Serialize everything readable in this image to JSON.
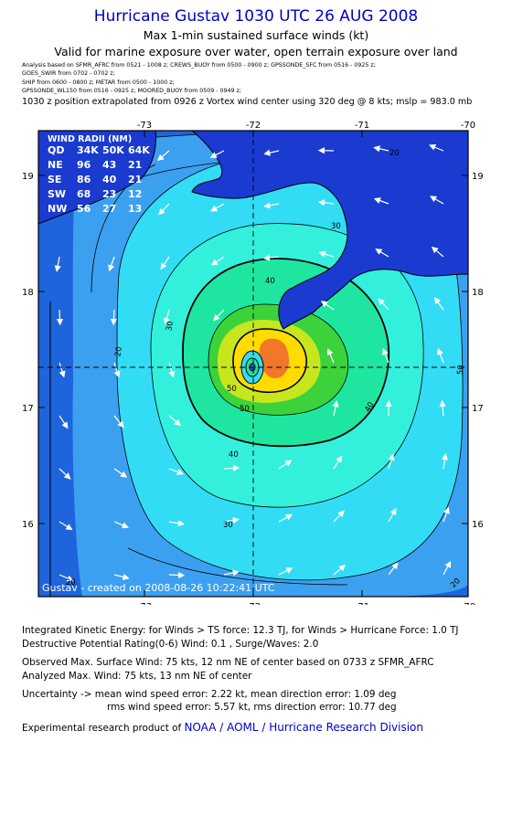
{
  "header": {
    "title": "Hurricane Gustav 1030 UTC 26 AUG 2008",
    "subtitle1": "Max 1-min sustained surface winds (kt)",
    "subtitle2": "Valid for marine exposure over water, open terrain exposure over land",
    "analysis_lines": [
      "Analysis based on  SFMR_AFRC  from 0521 - 1008 z;  CREWS_BUOY from 0500 - 0900 z;  GPSSONDE_SFC from 0516 - 0925 z;",
      "GOES_SWIR from 0702 - 0702 z;",
      "SHIP from 0600 - 0800 z;   METAR from 0500 - 1000 z;",
      "GPSSONDE_WL150 from 0516 - 0925 z;   MOORED_BUOY from 0509 - 0949 z;"
    ],
    "extrapolation": "1030 z position extrapolated from 0926 z Vortex wind center using 320 deg @ 8 kts; mslp = 983.0 mb"
  },
  "map": {
    "lon_ticks": [
      "-73",
      "-72",
      "-71",
      "-70"
    ],
    "lat_ticks": [
      "19",
      "18",
      "17",
      "16"
    ],
    "wind_radii": {
      "title": "WIND RADII (NM)",
      "header": [
        "QD",
        "34K",
        "50K",
        "64K"
      ],
      "rows": [
        [
          "NE",
          "96",
          "43",
          "21"
        ],
        [
          "SE",
          "86",
          "40",
          "21"
        ],
        [
          "SW",
          "68",
          "23",
          "12"
        ],
        [
          "NW",
          "56",
          "27",
          "13"
        ]
      ]
    },
    "contour_labels": [
      "20",
      "30",
      "30",
      "20",
      "40",
      "50",
      "40",
      "30",
      "50",
      "40",
      "50",
      "20",
      "20"
    ],
    "created": "Gustav - created on 2008-08-26 10:22:41 UTC",
    "colors": {
      "outer": "#1e64dc",
      "c20": "#3ca0f0",
      "c30": "#33dcf5",
      "c40": "#33f0dc",
      "c50": "#1ee6a0",
      "c60": "#3cd23c",
      "c64": "#c8e61e",
      "c70": "#ffdc00",
      "c75": "#f07828",
      "land": "#1a3ad0"
    }
  },
  "info": {
    "ike": "Integrated Kinetic Energy:  for Winds > TS force: 12.3 TJ,  for Winds > Hurricane Force: 1.0 TJ",
    "dpr": "Destructive Potential Rating(0-6)   Wind: 0.1 , Surge/Waves: 2.0",
    "obs_max": "Observed Max. Surface Wind: 75 kts, 12 nm NE of center based on 0733 z SFMR_AFRC",
    "ana_max": "Analyzed Max. Wind: 75 kts, 13 nm NE of center",
    "unc1": "Uncertainty -> mean wind speed error: 2.22 kt,   mean direction error: 1.09 deg",
    "unc2": "rms wind speed error: 5.57 kt,   rms direction error: 10.77 deg",
    "product_prefix": "Experimental research product of ",
    "product_link": "NOAA / AOML / Hurricane Research Division"
  }
}
